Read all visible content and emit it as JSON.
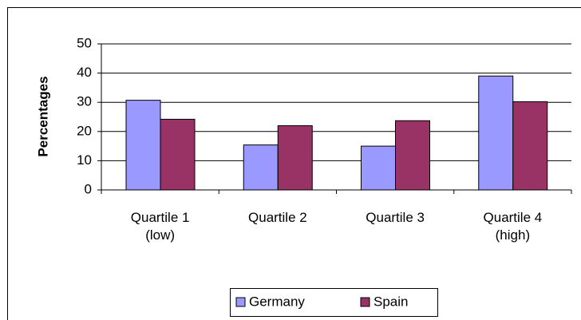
{
  "chart_data": {
    "type": "bar",
    "y_label": "Percentages",
    "categories": [
      "Quartile 1 (low)",
      "Quartile 2",
      "Quartile 3",
      "Quartile 4 (high)"
    ],
    "series": [
      {
        "name": "Germany",
        "color": "#9999ff",
        "values": [
          30.7,
          15.4,
          15,
          39
        ]
      },
      {
        "name": "Spain",
        "color": "#993366",
        "values": [
          24.2,
          22,
          23.7,
          30.2
        ]
      }
    ],
    "ylim": [
      0,
      50
    ],
    "yticks": [
      0,
      10,
      20,
      30,
      40,
      50
    ],
    "grid": true,
    "legend": "bottom"
  }
}
